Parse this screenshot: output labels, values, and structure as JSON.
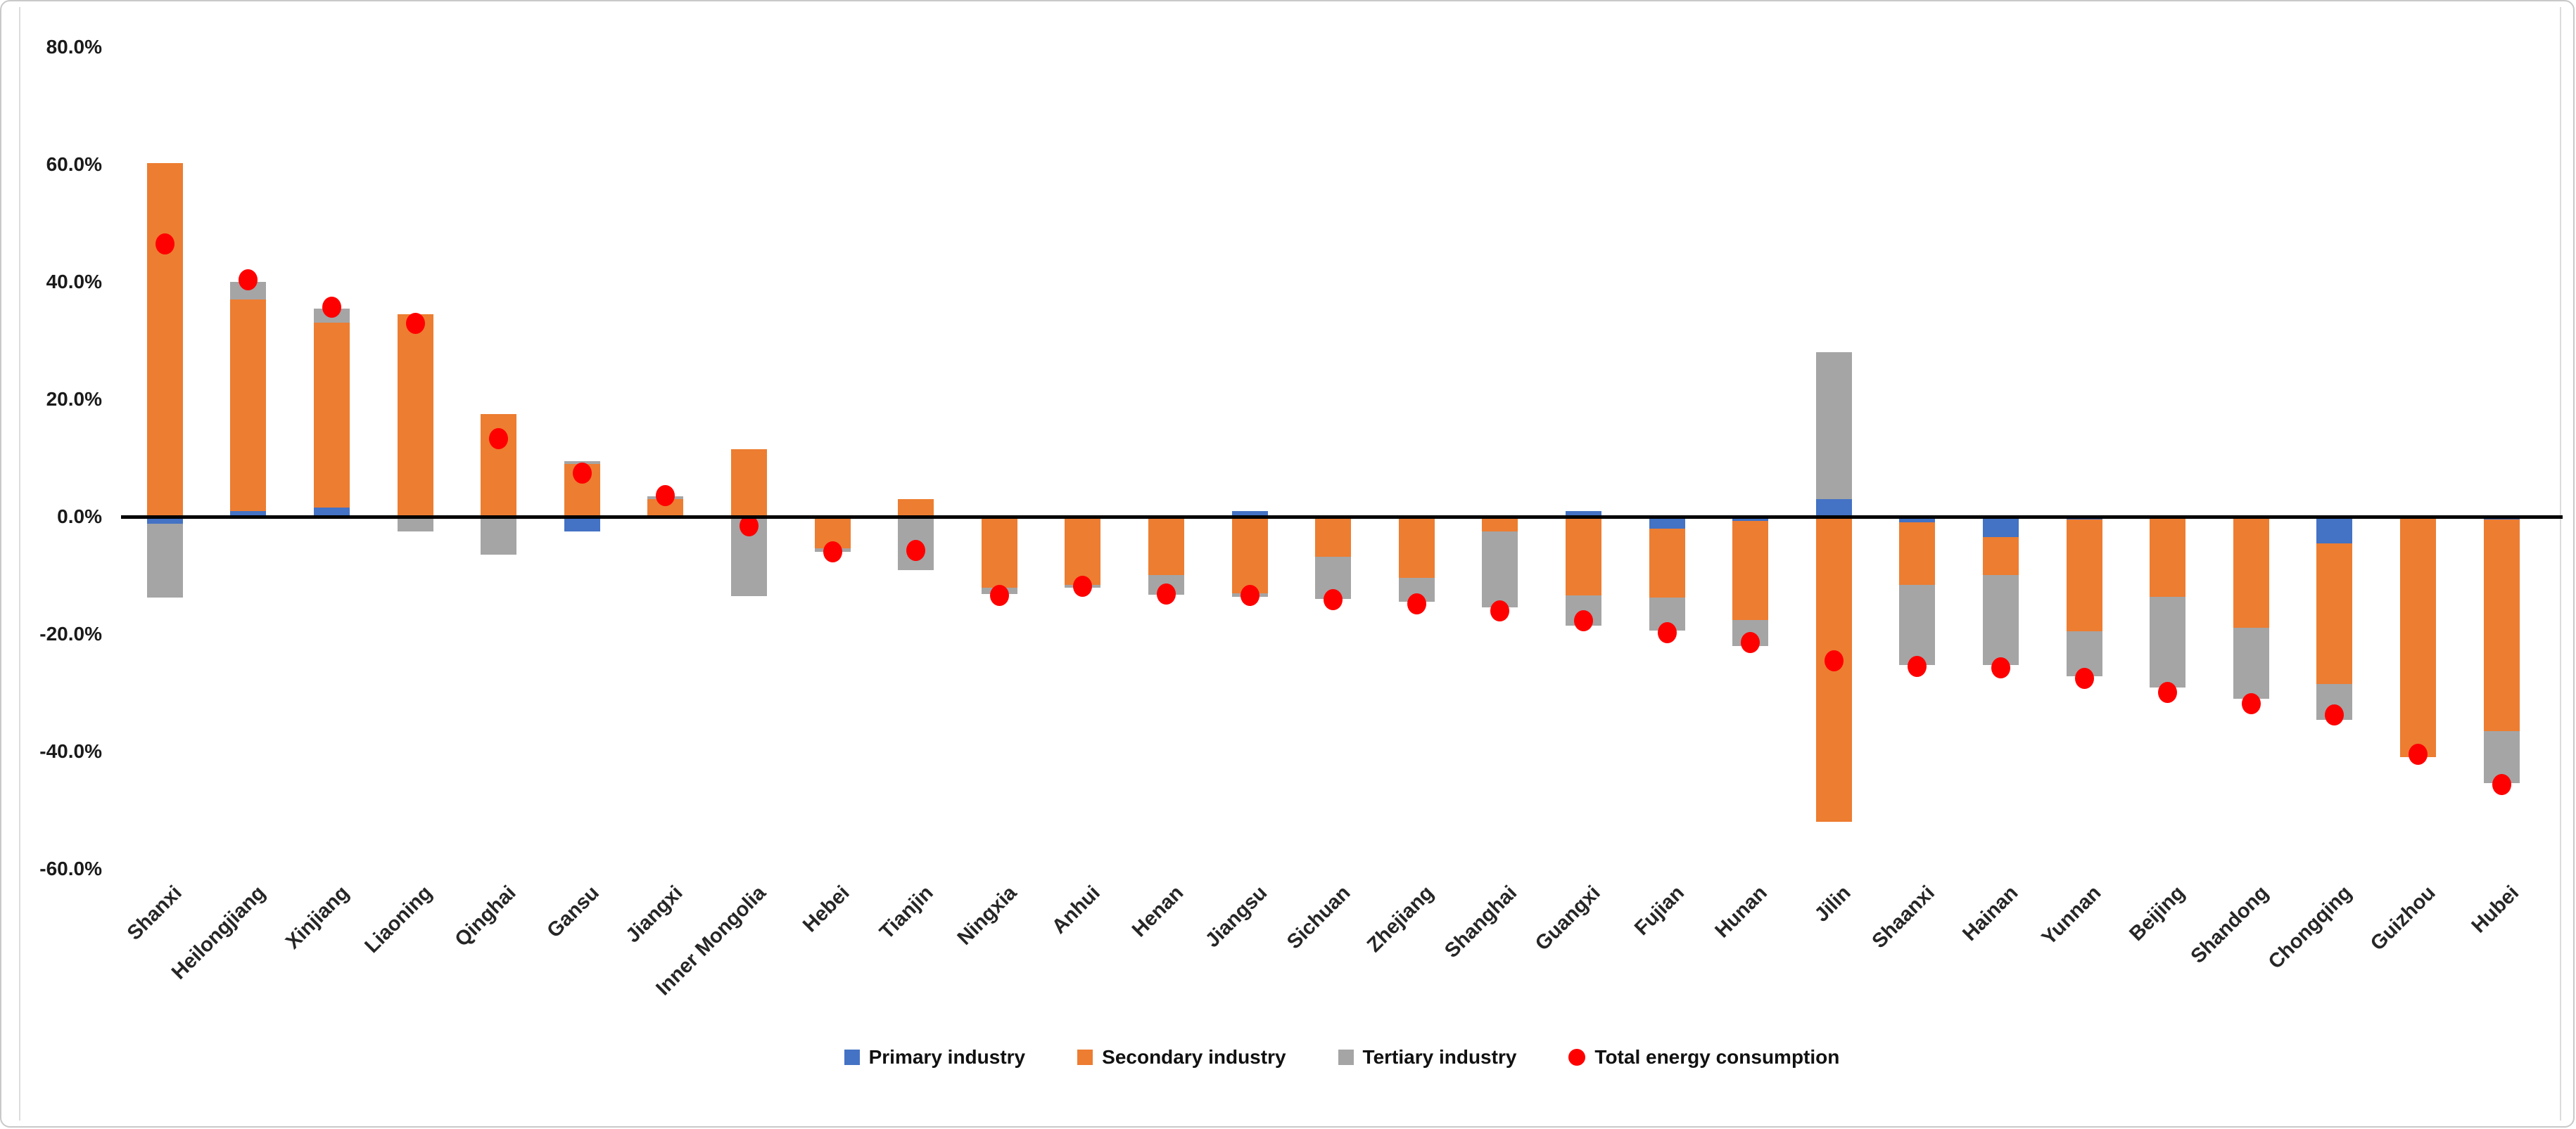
{
  "chart_data": {
    "type": "combo",
    "bar_type": "stacked-column",
    "title": "",
    "xlabel": "",
    "ylabel": "",
    "grid": false,
    "legend_position": "bottom",
    "categories": [
      "Shanxi",
      "Heilongjiang",
      "Xinjiang",
      "Liaoning",
      "Qinghai",
      "Gansu",
      "Jiangxi",
      "Inner Mongolia",
      "Hebei",
      "Tianjin",
      "Ningxia",
      "Anhui",
      "Henan",
      "Jiangsu",
      "Sichuan",
      "Zhejiang",
      "Shanghai",
      "Guangxi",
      "Fujian",
      "Hunan",
      "Jilin",
      "Shaanxi",
      "Hainan",
      "Yunnan",
      "Beijing",
      "Shandong",
      "Chongqing",
      "Guizhou",
      "Hubei"
    ],
    "series": [
      {
        "name": "Primary industry",
        "color": "#4472C4",
        "values": [
          -1.2,
          1.0,
          1.5,
          0,
          0,
          -2.5,
          0,
          0,
          0,
          0,
          0,
          0,
          0,
          1.0,
          0,
          0,
          0,
          1.0,
          -2.0,
          -0.7,
          3.0,
          -1.0,
          -3.5,
          -0.5,
          0,
          0,
          -4.5,
          0,
          -0.5
        ]
      },
      {
        "name": "Secondary industry",
        "color": "#ED7D31",
        "values": [
          60.2,
          36.0,
          31.5,
          34.5,
          17.5,
          9.0,
          3.0,
          11.5,
          -5.4,
          3.0,
          -12.1,
          -11.6,
          -9.9,
          -13.1,
          -6.8,
          -10.4,
          -2.5,
          -13.4,
          -11.8,
          -16.9,
          -52.0,
          -10.6,
          -6.4,
          -19.0,
          -13.7,
          -18.9,
          -24.0,
          -41.0,
          -36.0
        ]
      },
      {
        "name": "Tertiary industry",
        "color": "#A5A5A5",
        "values": [
          -12.6,
          3.0,
          2.5,
          -2.5,
          -6.5,
          0.5,
          0.5,
          -13.5,
          -0.6,
          -9.1,
          -1.1,
          -0.5,
          -3.4,
          -0.6,
          -7.2,
          -4.1,
          -13.0,
          -5.2,
          -5.6,
          -4.4,
          25.0,
          -13.7,
          -15.4,
          -7.7,
          -15.4,
          -12.1,
          -6.1,
          0,
          -8.9
        ]
      }
    ],
    "scatter": {
      "name": "Total energy consumption",
      "color": "#FF0000",
      "values": [
        46.5,
        40.3,
        35.7,
        32.9,
        13.3,
        7.4,
        3.6,
        -1.5,
        -6.0,
        -5.8,
        -13.4,
        -11.9,
        -13.2,
        -13.4,
        -14.1,
        -14.9,
        -16.0,
        -17.7,
        -19.8,
        -21.4,
        -24.5,
        -25.5,
        -25.7,
        -27.5,
        -29.9,
        -31.9,
        -33.8,
        -40.5,
        -45.6
      ]
    },
    "yaxis": {
      "min": -60,
      "max": 80,
      "step": 20,
      "tick_labels": [
        "80.0%",
        "60.0%",
        "40.0%",
        "20.0%",
        "0.0%",
        "-20.0%",
        "-40.0%",
        "-60.0%"
      ]
    },
    "legend": [
      {
        "label": "Primary industry",
        "color": "#4472C4",
        "marker": "square"
      },
      {
        "label": "Secondary industry",
        "color": "#ED7D31",
        "marker": "square"
      },
      {
        "label": "Tertiary industry",
        "color": "#A5A5A5",
        "marker": "square"
      },
      {
        "label": "Total energy consumption",
        "color": "#FF0000",
        "marker": "circle"
      }
    ],
    "colors": {
      "zero_line": "#000000",
      "tick_text": "#1a1a1a",
      "label_text": "#262626",
      "plot_border": "#dcdcdc"
    }
  }
}
